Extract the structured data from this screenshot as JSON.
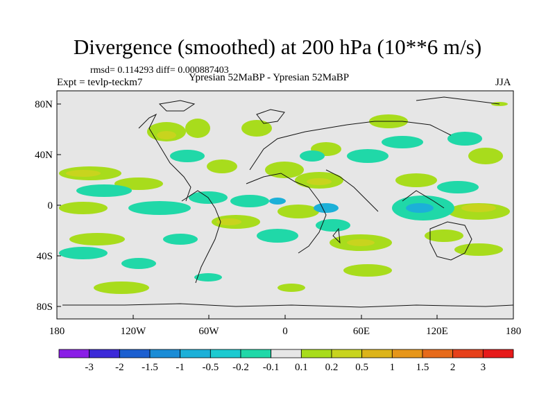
{
  "title": "Divergence (smoothed) at 200 hPa (10**6 m/s)",
  "stats": "rmsd= 0.114293  diff= 0.000887403",
  "expt": "Expt = tevlp-teckm7",
  "subtitle": "Ypresian  52MaBP - Ypresian  52MaBP",
  "season": "JJA",
  "y_axis_labels": [
    "80N",
    "40N",
    "0",
    "40S",
    "80S"
  ],
  "x_axis_labels": [
    "180",
    "120W",
    "60W",
    "0",
    "60E",
    "120E",
    "180"
  ],
  "colorbar": {
    "labels": [
      "-3",
      "-2",
      "-1.5",
      "-1",
      "-0.5",
      "-0.2",
      "-0.1",
      "0.1",
      "0.2",
      "0.5",
      "1",
      "1.5",
      "2",
      "3"
    ],
    "colors": [
      "#8a1ee6",
      "#3c2ad8",
      "#1c5fd0",
      "#1a8cd6",
      "#1cb0d8",
      "#1ccad0",
      "#20d8a8",
      "#e6e6e6",
      "#a8dc1c",
      "#c8d41e",
      "#dcb41a",
      "#e6961a",
      "#e66a1a",
      "#e6401a",
      "#e61a1a"
    ]
  },
  "legend_colors": {
    "land_background": "#e6e6e6",
    "pos_01": "#a8dc1c",
    "pos_02": "#c8d41e",
    "neg_01": "#20d8a8",
    "neg_02": "#1ccad0"
  }
}
